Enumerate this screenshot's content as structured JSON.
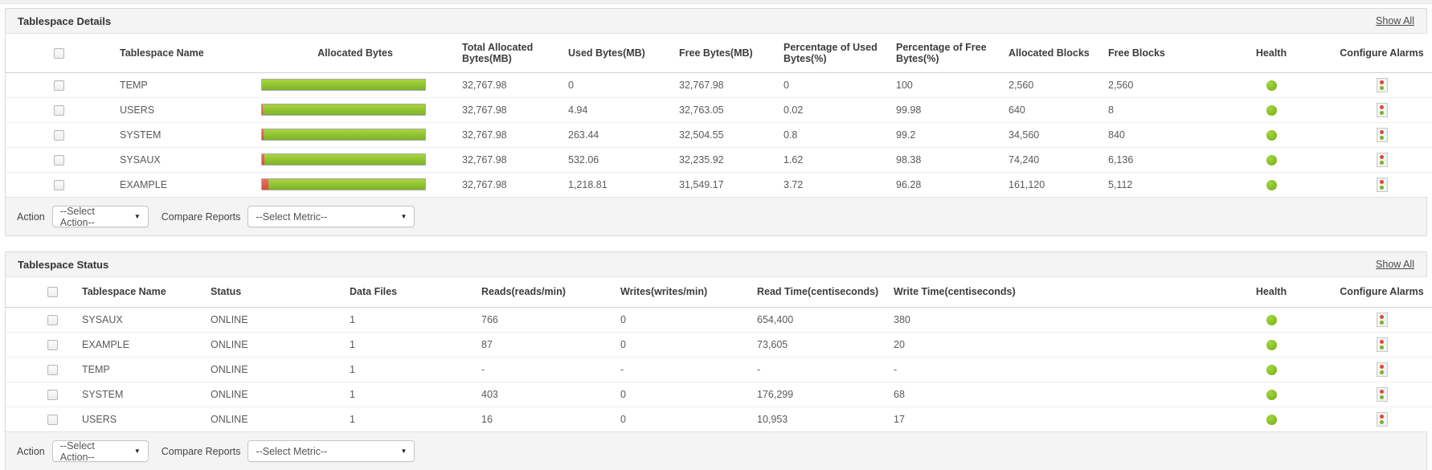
{
  "colors": {
    "bar_green_top": "#aad53f",
    "bar_green_bottom": "#7cb22a",
    "bar_red": "#d94b3a",
    "health_green": "#72ab15",
    "panel_header_bg": "#f4f4f4"
  },
  "icons": {
    "health": "green-dot-icon",
    "configure_alarms": "traffic-light-icon",
    "dropdown_arrow": "▼"
  },
  "panels": [
    {
      "title": "Tablespace Details",
      "show_all_label": "Show All",
      "columns": [
        {
          "key": "checkbox",
          "label": ""
        },
        {
          "key": "name",
          "label": "Tablespace Name"
        },
        {
          "key": "bar",
          "label": "Allocated Bytes"
        },
        {
          "key": "total_mb",
          "label": "Total Allocated Bytes(MB)"
        },
        {
          "key": "used_mb",
          "label": "Used Bytes(MB)"
        },
        {
          "key": "free_mb",
          "label": "Free Bytes(MB)"
        },
        {
          "key": "pct_used",
          "label": "Percentage of Used Bytes(%)"
        },
        {
          "key": "pct_free",
          "label": "Percentage of Free Bytes(%)"
        },
        {
          "key": "alloc_blocks",
          "label": "Allocated Blocks"
        },
        {
          "key": "free_blocks",
          "label": "Free Blocks"
        },
        {
          "key": "health",
          "label": "Health"
        },
        {
          "key": "alarm",
          "label": "Configure Alarms"
        }
      ],
      "rows": [
        {
          "name": "TEMP",
          "total_mb": "32,767.98",
          "used_mb": "0",
          "free_mb": "32,767.98",
          "pct_used": "0",
          "pct_free": "100",
          "alloc_blocks": "2,560",
          "free_blocks": "2,560",
          "health": "green"
        },
        {
          "name": "USERS",
          "total_mb": "32,767.98",
          "used_mb": "4.94",
          "free_mb": "32,763.05",
          "pct_used": "0.02",
          "pct_free": "99.98",
          "alloc_blocks": "640",
          "free_blocks": "8",
          "health": "green"
        },
        {
          "name": "SYSTEM",
          "total_mb": "32,767.98",
          "used_mb": "263.44",
          "free_mb": "32,504.55",
          "pct_used": "0.8",
          "pct_free": "99.2",
          "alloc_blocks": "34,560",
          "free_blocks": "840",
          "health": "green"
        },
        {
          "name": "SYSAUX",
          "total_mb": "32,767.98",
          "used_mb": "532.06",
          "free_mb": "32,235.92",
          "pct_used": "1.62",
          "pct_free": "98.38",
          "alloc_blocks": "74,240",
          "free_blocks": "6,136",
          "health": "green"
        },
        {
          "name": "EXAMPLE",
          "total_mb": "32,767.98",
          "used_mb": "1,218.81",
          "free_mb": "31,549.17",
          "pct_used": "3.72",
          "pct_free": "96.28",
          "alloc_blocks": "161,120",
          "free_blocks": "5,112",
          "health": "green"
        }
      ],
      "action": {
        "label": "Action",
        "selected": "--Select Action--"
      },
      "compare": {
        "label": "Compare Reports",
        "selected": "--Select Metric--"
      }
    },
    {
      "title": "Tablespace Status",
      "show_all_label": "Show All",
      "columns": [
        {
          "key": "checkbox",
          "label": ""
        },
        {
          "key": "name",
          "label": "Tablespace Name"
        },
        {
          "key": "status",
          "label": "Status"
        },
        {
          "key": "data_files",
          "label": "Data Files"
        },
        {
          "key": "reads",
          "label": "Reads(reads/min)"
        },
        {
          "key": "writes",
          "label": "Writes(writes/min)"
        },
        {
          "key": "read_time",
          "label": "Read Time(centiseconds)"
        },
        {
          "key": "write_time",
          "label": "Write Time(centiseconds)"
        },
        {
          "key": "health",
          "label": "Health"
        },
        {
          "key": "alarm",
          "label": "Configure Alarms"
        }
      ],
      "rows": [
        {
          "name": "SYSAUX",
          "status": "ONLINE",
          "data_files": "1",
          "reads": "766",
          "writes": "0",
          "read_time": "654,400",
          "write_time": "380",
          "health": "green"
        },
        {
          "name": "EXAMPLE",
          "status": "ONLINE",
          "data_files": "1",
          "reads": "87",
          "writes": "0",
          "read_time": "73,605",
          "write_time": "20",
          "health": "green"
        },
        {
          "name": "TEMP",
          "status": "ONLINE",
          "data_files": "1",
          "reads": "-",
          "writes": "-",
          "read_time": "-",
          "write_time": "-",
          "health": "green"
        },
        {
          "name": "SYSTEM",
          "status": "ONLINE",
          "data_files": "1",
          "reads": "403",
          "writes": "0",
          "read_time": "176,299",
          "write_time": "68",
          "health": "green"
        },
        {
          "name": "USERS",
          "status": "ONLINE",
          "data_files": "1",
          "reads": "16",
          "writes": "0",
          "read_time": "10,953",
          "write_time": "17",
          "health": "green"
        }
      ],
      "action": {
        "label": "Action",
        "selected": "--Select Action--"
      },
      "compare": {
        "label": "Compare Reports",
        "selected": "--Select Metric--"
      }
    }
  ]
}
